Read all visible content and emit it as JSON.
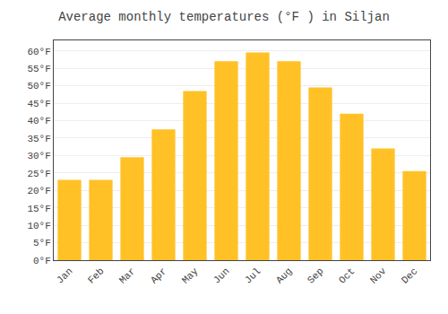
{
  "chart_data": {
    "type": "bar",
    "title": "Average monthly temperatures (°F ) in Siljan",
    "categories": [
      "Jan",
      "Feb",
      "Mar",
      "Apr",
      "May",
      "Jun",
      "Jul",
      "Aug",
      "Sep",
      "Oct",
      "Nov",
      "Dec"
    ],
    "values": [
      23,
      23,
      29.5,
      37.5,
      48.5,
      57,
      59.5,
      57,
      49.5,
      42,
      32,
      25.5
    ],
    "color": "#FFC125",
    "ylim": [
      0,
      63
    ],
    "yticks": [
      {
        "value": 0,
        "label": "0°F"
      },
      {
        "value": 5,
        "label": "5°F"
      },
      {
        "value": 10,
        "label": "10°F"
      },
      {
        "value": 15,
        "label": "15°F"
      },
      {
        "value": 20,
        "label": "20°F"
      },
      {
        "value": 25,
        "label": "25°F"
      },
      {
        "value": 30,
        "label": "30°F"
      },
      {
        "value": 35,
        "label": "35°F"
      },
      {
        "value": 40,
        "label": "40°F"
      },
      {
        "value": 45,
        "label": "45°F"
      },
      {
        "value": 50,
        "label": "50°F"
      },
      {
        "value": 55,
        "label": "55°F"
      },
      {
        "value": 60,
        "label": "60°F"
      }
    ],
    "grid": true
  }
}
